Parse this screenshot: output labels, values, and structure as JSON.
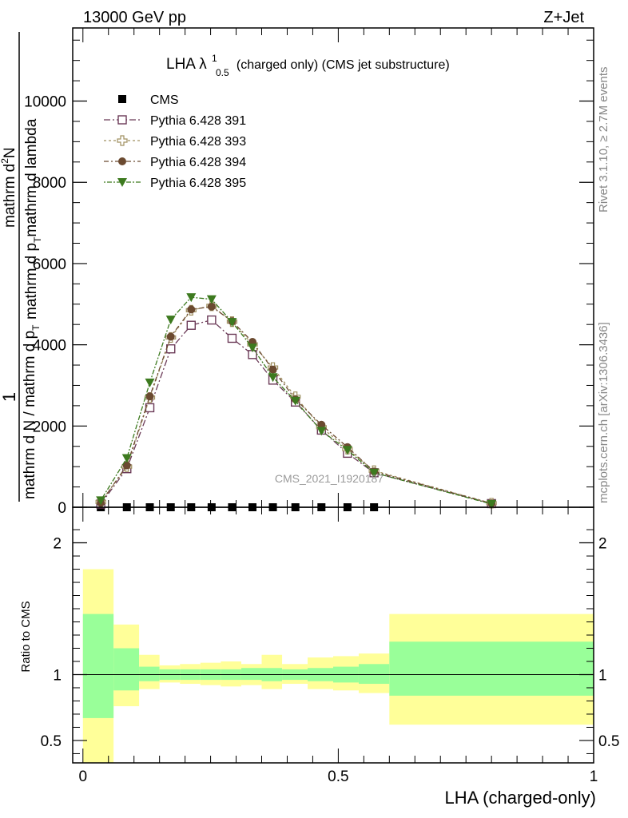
{
  "header": {
    "left": "13000 GeV pp",
    "right": "Z+Jet"
  },
  "side_labels": {
    "rivet": "Rivet 3.1.10, ≥ 2.7M events",
    "mcplots": "mcplots.cern.ch [arXiv:1306.3436]"
  },
  "chart_data": [
    {
      "type": "line",
      "title": "LHA λ",
      "title_sup": "1",
      "title_sub": "0.5",
      "title_rest": "(charged only) (CMS jet substructure)",
      "watermark": "CMS_2021_I1920187",
      "ylabel": {
        "prefix": "1",
        "denominator": "mathrm d N / mathrm d p",
        "den_sub": "T",
        "numerator": "mathrm d",
        "num_sup": "2",
        "num_rest": "N",
        "num_denominator": "mathrm d p",
        "num_den_sub": "T",
        "num_den_rest": "mathrm d lambda"
      },
      "xlim": [
        -0.02,
        1.0
      ],
      "ylim": [
        0,
        11800
      ],
      "yticks": [
        {
          "value": 0,
          "label": "0"
        },
        {
          "value": 2000,
          "label": "2000"
        },
        {
          "value": 4000,
          "label": "4000"
        },
        {
          "value": 6000,
          "label": "6000"
        },
        {
          "value": 8000,
          "label": "8000"
        },
        {
          "value": 10000,
          "label": "10000"
        }
      ],
      "series": [
        {
          "name": "CMS",
          "color": "#000000",
          "marker": "square-filled",
          "x": [
            0.035,
            0.086,
            0.131,
            0.172,
            0.212,
            0.252,
            0.292,
            0.332,
            0.372,
            0.416,
            0.467,
            0.518,
            0.57
          ],
          "y": [
            0,
            0,
            0,
            0,
            0,
            0,
            0,
            0,
            0,
            0,
            0,
            0,
            0
          ]
        },
        {
          "name": "Pythia 6.428 391",
          "color": "#6b3a57",
          "marker": "square-open",
          "x": [
            0.035,
            0.086,
            0.131,
            0.172,
            0.212,
            0.252,
            0.292,
            0.332,
            0.372,
            0.416,
            0.467,
            0.518,
            0.57,
            0.8
          ],
          "y": [
            80,
            950,
            2450,
            3900,
            4480,
            4610,
            4160,
            3760,
            3130,
            2590,
            1900,
            1330,
            850,
            90
          ]
        },
        {
          "name": "Pythia 6.428 393",
          "color": "#a09060",
          "marker": "plus-open",
          "x": [
            0.035,
            0.086,
            0.131,
            0.172,
            0.212,
            0.252,
            0.292,
            0.332,
            0.372,
            0.416,
            0.467,
            0.518,
            0.57,
            0.8
          ],
          "y": [
            130,
            1000,
            2700,
            4180,
            4850,
            4960,
            4570,
            4010,
            3440,
            2720,
            1970,
            1430,
            900,
            100
          ]
        },
        {
          "name": "Pythia 6.428 394",
          "color": "#6b4a30",
          "marker": "circle-filled",
          "x": [
            0.035,
            0.086,
            0.131,
            0.172,
            0.212,
            0.252,
            0.292,
            0.332,
            0.372,
            0.416,
            0.467,
            0.518,
            0.57,
            0.8
          ],
          "y": [
            110,
            1030,
            2730,
            4200,
            4870,
            4940,
            4580,
            4070,
            3390,
            2660,
            2030,
            1480,
            880,
            95
          ]
        },
        {
          "name": "Pythia 6.428 395",
          "color": "#3d7a1f",
          "marker": "triangle-down-filled",
          "x": [
            0.035,
            0.086,
            0.131,
            0.172,
            0.212,
            0.252,
            0.292,
            0.332,
            0.372,
            0.416,
            0.467,
            0.518,
            0.57,
            0.8
          ],
          "y": [
            170,
            1210,
            3070,
            4620,
            5170,
            5120,
            4560,
            3930,
            3200,
            2620,
            1880,
            1410,
            850,
            80
          ]
        }
      ]
    },
    {
      "type": "area",
      "ylabel": "Ratio to CMS",
      "xlabel": "LHA (charged-only)",
      "xlim": [
        -0.02,
        1.0
      ],
      "ylim": [
        0.33,
        2.27
      ],
      "yticks": [
        {
          "value": 0.5,
          "label": "0.5"
        },
        {
          "value": 1,
          "label": "1"
        },
        {
          "value": 2,
          "label": "2"
        }
      ],
      "xticks": [
        {
          "value": 0,
          "label": "0"
        },
        {
          "value": 0.5,
          "label": "0.5"
        },
        {
          "value": 1,
          "label": "1"
        }
      ],
      "band_colors": {
        "stat": "#99ff99",
        "total": "#ffff99"
      },
      "bins": [
        {
          "x0": 0.0,
          "x1": 0.06,
          "stat": [
            0.67,
            1.46
          ],
          "total": [
            0.33,
            1.8
          ]
        },
        {
          "x0": 0.06,
          "x1": 0.11,
          "stat": [
            0.88,
            1.2
          ],
          "total": [
            0.76,
            1.38
          ]
        },
        {
          "x0": 0.11,
          "x1": 0.15,
          "stat": [
            0.95,
            1.06
          ],
          "total": [
            0.89,
            1.15
          ]
        },
        {
          "x0": 0.15,
          "x1": 0.19,
          "stat": [
            0.96,
            1.04
          ],
          "total": [
            0.94,
            1.07
          ]
        },
        {
          "x0": 0.19,
          "x1": 0.23,
          "stat": [
            0.96,
            1.04
          ],
          "total": [
            0.93,
            1.08
          ]
        },
        {
          "x0": 0.23,
          "x1": 0.27,
          "stat": [
            0.96,
            1.04
          ],
          "total": [
            0.92,
            1.09
          ]
        },
        {
          "x0": 0.27,
          "x1": 0.31,
          "stat": [
            0.96,
            1.04
          ],
          "total": [
            0.91,
            1.1
          ]
        },
        {
          "x0": 0.31,
          "x1": 0.35,
          "stat": [
            0.96,
            1.05
          ],
          "total": [
            0.92,
            1.08
          ]
        },
        {
          "x0": 0.35,
          "x1": 0.39,
          "stat": [
            0.95,
            1.05
          ],
          "total": [
            0.89,
            1.15
          ]
        },
        {
          "x0": 0.39,
          "x1": 0.44,
          "stat": [
            0.96,
            1.04
          ],
          "total": [
            0.93,
            1.08
          ]
        },
        {
          "x0": 0.44,
          "x1": 0.49,
          "stat": [
            0.95,
            1.05
          ],
          "total": [
            0.89,
            1.13
          ]
        },
        {
          "x0": 0.49,
          "x1": 0.54,
          "stat": [
            0.94,
            1.06
          ],
          "total": [
            0.88,
            1.14
          ]
        },
        {
          "x0": 0.54,
          "x1": 0.6,
          "stat": [
            0.93,
            1.08
          ],
          "total": [
            0.86,
            1.16
          ]
        },
        {
          "x0": 0.6,
          "x1": 1.0,
          "stat": [
            0.84,
            1.25
          ],
          "total": [
            0.62,
            1.46
          ]
        }
      ],
      "reference": 1
    }
  ]
}
